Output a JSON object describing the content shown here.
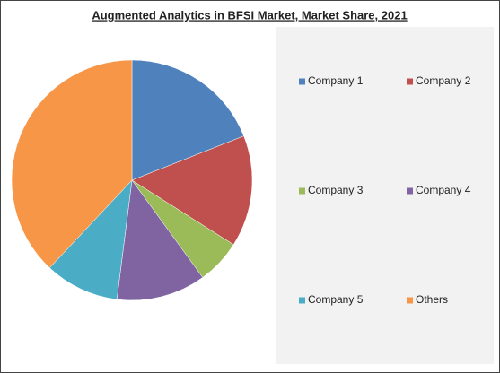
{
  "chart_data": {
    "type": "pie",
    "title": "Augmented Analytics in BFSI Market, Market Share, 2021",
    "categories": [
      "Company 1",
      "Company 2",
      "Company 3",
      "Company 4",
      "Company 5",
      "Others"
    ],
    "values": [
      19,
      15,
      6,
      12,
      10,
      38
    ],
    "colors": [
      "#4f81bd",
      "#c0504d",
      "#9bbb59",
      "#8064a2",
      "#4bacc6",
      "#f79646"
    ],
    "legend": "right"
  }
}
